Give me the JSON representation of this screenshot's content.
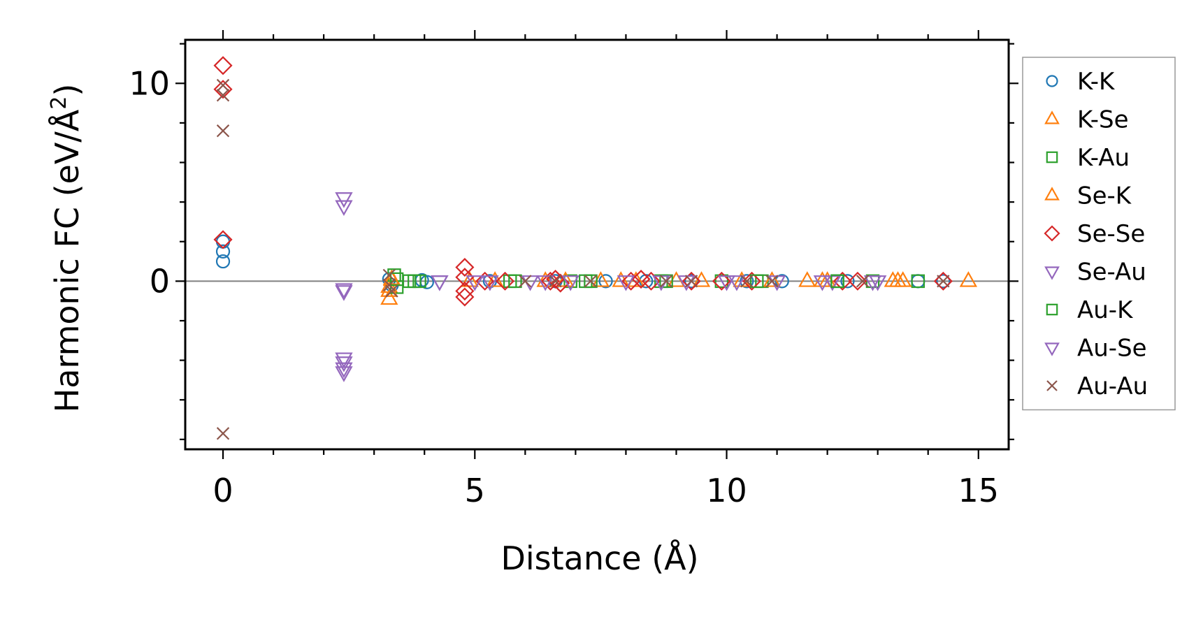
{
  "chart_data": {
    "type": "scatter",
    "xlabel": "Distance (Å)",
    "ylabel_prefix": "Harmonic FC (eV/Å",
    "ylabel_sup": "2",
    "ylabel_suffix": ")",
    "xlim": [
      -0.75,
      15.6
    ],
    "ylim": [
      -8.5,
      12.2
    ],
    "xticks": [
      0,
      5,
      10,
      15
    ],
    "xtick_labels": [
      "0",
      "5",
      "10",
      "15"
    ],
    "yticks": [
      0,
      10
    ],
    "ytick_labels": [
      "0",
      "10"
    ],
    "x_minor_step": 1,
    "y_minor_step": 2,
    "zero_line": true,
    "grid": false,
    "legend_position": "outside-right",
    "series": [
      {
        "name": "K-K",
        "marker": "circle",
        "color": "#1f77b4",
        "points": [
          [
            0,
            2.0
          ],
          [
            0,
            1.5
          ],
          [
            0,
            1.0
          ],
          [
            3.3,
            0.1
          ],
          [
            3.35,
            -0.2
          ],
          [
            3.95,
            0.05
          ],
          [
            4.05,
            -0.05
          ],
          [
            5.3,
            0.0
          ],
          [
            6.6,
            0.0
          ],
          [
            7.6,
            0.0
          ],
          [
            8.4,
            0.0
          ],
          [
            9.3,
            0.0
          ],
          [
            10.4,
            0.0
          ],
          [
            11.1,
            0.0
          ],
          [
            12.4,
            0.0
          ],
          [
            13.8,
            0.0
          ],
          [
            14.3,
            0.0
          ]
        ]
      },
      {
        "name": "K-Se",
        "marker": "triangle-up",
        "color": "#ff7f0e",
        "points": [
          [
            3.3,
            -0.9
          ],
          [
            3.3,
            -0.3
          ],
          [
            3.35,
            0.1
          ],
          [
            4.9,
            0.0
          ],
          [
            6.4,
            0.0
          ],
          [
            7.5,
            0.0
          ],
          [
            7.9,
            0.0
          ],
          [
            9.0,
            0.0
          ],
          [
            10.3,
            0.0
          ],
          [
            11.6,
            0.0
          ],
          [
            11.9,
            0.0
          ],
          [
            13.3,
            0.0
          ],
          [
            13.4,
            0.0
          ],
          [
            14.8,
            0.0
          ]
        ]
      },
      {
        "name": "K-Au",
        "marker": "square",
        "color": "#2ca02c",
        "points": [
          [
            3.4,
            0.3
          ],
          [
            3.45,
            -0.3
          ],
          [
            3.7,
            0.0
          ],
          [
            3.9,
            0.0
          ],
          [
            5.7,
            0.0
          ],
          [
            6.9,
            0.0
          ],
          [
            7.2,
            0.0
          ],
          [
            8.7,
            0.0
          ],
          [
            9.9,
            0.0
          ],
          [
            10.7,
            0.0
          ],
          [
            12.2,
            0.0
          ],
          [
            12.9,
            0.0
          ],
          [
            13.8,
            0.0
          ]
        ]
      },
      {
        "name": "Se-K",
        "marker": "triangle-up",
        "color": "#ff7f0e",
        "points": [
          [
            3.3,
            -0.5
          ],
          [
            3.35,
            0.05
          ],
          [
            5.4,
            0.0
          ],
          [
            6.8,
            0.0
          ],
          [
            8.2,
            0.0
          ],
          [
            9.5,
            0.0
          ],
          [
            10.9,
            0.0
          ],
          [
            12.0,
            0.0
          ],
          [
            13.5,
            0.0
          ]
        ]
      },
      {
        "name": "Se-Se",
        "marker": "diamond",
        "color": "#d62728",
        "points": [
          [
            0,
            10.9
          ],
          [
            0,
            9.7
          ],
          [
            0,
            2.1
          ],
          [
            4.8,
            0.7
          ],
          [
            4.8,
            0.2
          ],
          [
            4.8,
            -0.5
          ],
          [
            4.8,
            -0.8
          ],
          [
            5.2,
            0.0
          ],
          [
            5.6,
            0.0
          ],
          [
            6.5,
            0.0
          ],
          [
            6.6,
            0.1
          ],
          [
            6.7,
            -0.1
          ],
          [
            8.1,
            0.0
          ],
          [
            8.3,
            0.1
          ],
          [
            8.5,
            0.0
          ],
          [
            9.3,
            0.0
          ],
          [
            9.9,
            0.0
          ],
          [
            10.5,
            0.0
          ],
          [
            12.3,
            0.0
          ],
          [
            12.6,
            0.0
          ],
          [
            14.3,
            0.0
          ]
        ]
      },
      {
        "name": "Se-Au",
        "marker": "triangle-down",
        "color": "#9467bd",
        "points": [
          [
            2.4,
            4.2
          ],
          [
            2.4,
            3.8
          ],
          [
            2.4,
            -0.5
          ],
          [
            2.4,
            -3.9
          ],
          [
            2.4,
            -4.1
          ],
          [
            2.4,
            -4.4
          ],
          [
            2.4,
            -4.6
          ],
          [
            4.3,
            0.0
          ],
          [
            5.0,
            0.0
          ],
          [
            6.1,
            0.0
          ],
          [
            6.9,
            0.0
          ],
          [
            8.0,
            0.0
          ],
          [
            9.2,
            0.0
          ],
          [
            10.0,
            0.0
          ],
          [
            11.0,
            0.0
          ],
          [
            12.1,
            0.0
          ],
          [
            13.0,
            0.0
          ]
        ]
      },
      {
        "name": "Au-K",
        "marker": "square",
        "color": "#2ca02c",
        "points": [
          [
            3.45,
            0.1
          ],
          [
            3.8,
            0.0
          ],
          [
            5.8,
            0.0
          ],
          [
            7.3,
            0.0
          ],
          [
            8.8,
            0.0
          ],
          [
            10.6,
            0.0
          ],
          [
            12.2,
            0.0
          ]
        ]
      },
      {
        "name": "Au-Se",
        "marker": "triangle-down",
        "color": "#9467bd",
        "points": [
          [
            2.4,
            -0.4
          ],
          [
            4.3,
            0.0
          ],
          [
            5.3,
            0.0
          ],
          [
            6.4,
            0.0
          ],
          [
            8.7,
            0.0
          ],
          [
            10.2,
            0.0
          ],
          [
            11.9,
            0.0
          ],
          [
            12.9,
            0.0
          ]
        ]
      },
      {
        "name": "Au-Au",
        "marker": "x",
        "color": "#8c564b",
        "points": [
          [
            0,
            9.9
          ],
          [
            0,
            9.4
          ],
          [
            0,
            7.6
          ],
          [
            0,
            -7.7
          ],
          [
            3.3,
            0.3
          ],
          [
            3.3,
            -0.2
          ],
          [
            3.35,
            -0.5
          ],
          [
            6.0,
            0.0
          ],
          [
            6.6,
            0.0
          ],
          [
            7.3,
            0.0
          ],
          [
            8.8,
            0.0
          ],
          [
            9.3,
            0.0
          ],
          [
            10.4,
            0.0
          ],
          [
            10.9,
            0.0
          ],
          [
            12.7,
            0.0
          ],
          [
            14.3,
            0.0
          ]
        ]
      }
    ]
  }
}
